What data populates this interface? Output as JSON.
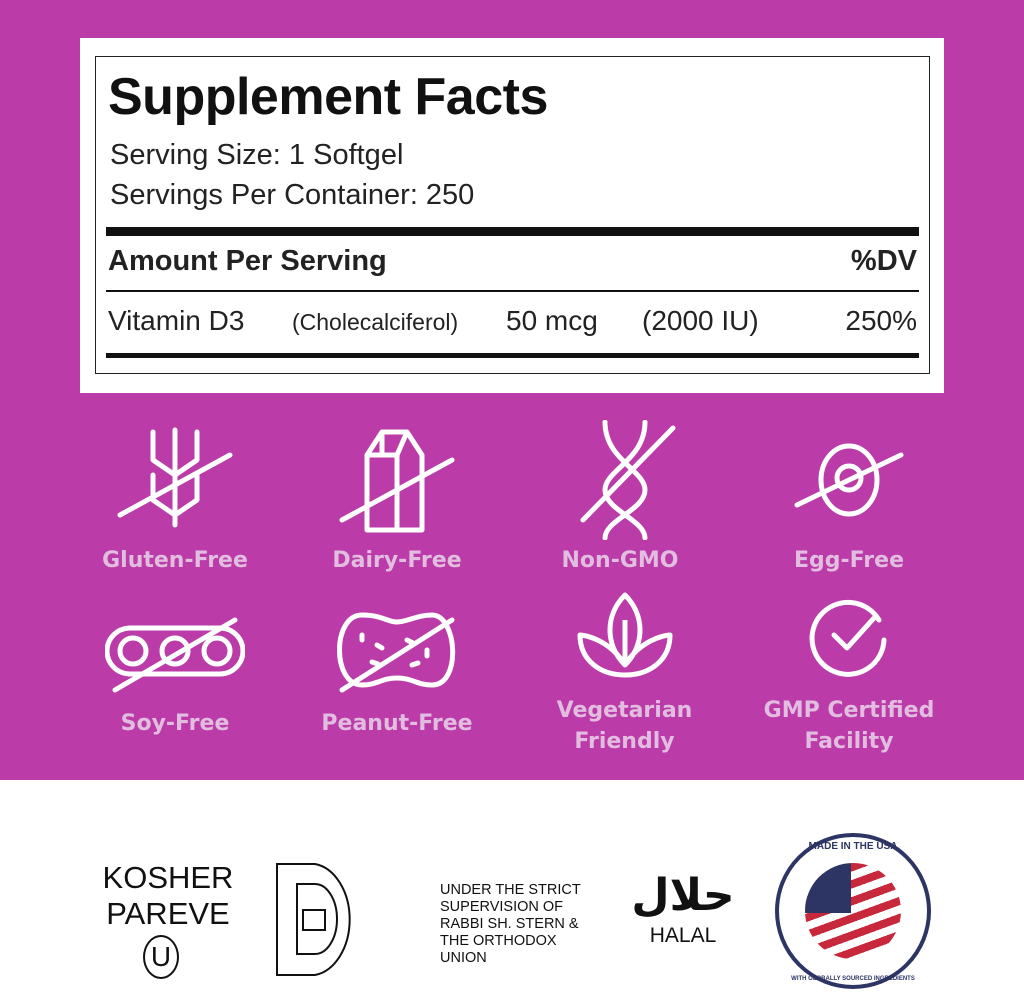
{
  "colors": {
    "background": "#bb3ba8",
    "label_text": "#e2bde0",
    "panel": "#ffffff"
  },
  "facts": {
    "title": "Supplement Facts",
    "serving_size": "Serving Size: 1 Softgel",
    "servings_per_container": "Servings Per Container: 250",
    "header_amount": "Amount Per Serving",
    "header_dv": "%DV",
    "rows": [
      {
        "name": "Vitamin D3",
        "detail": "(Cholecalciferol)",
        "amount": "50 mcg",
        "iu": "(2000 IU)",
        "dv": "250%"
      }
    ]
  },
  "badges": [
    {
      "label": "Gluten-Free",
      "icon": "wheat-crossed-icon"
    },
    {
      "label": "Dairy-Free",
      "icon": "milk-carton-crossed-icon"
    },
    {
      "label": "Non-GMO",
      "icon": "dna-crossed-icon"
    },
    {
      "label": "Egg-Free",
      "icon": "egg-crossed-icon"
    },
    {
      "label": "Soy-Free",
      "icon": "soybean-crossed-icon"
    },
    {
      "label": "Peanut-Free",
      "icon": "peanut-crossed-icon"
    },
    {
      "label": "Vegetarian Friendly",
      "icon": "leaf-icon"
    },
    {
      "label": "GMP Certified Facility",
      "icon": "check-circle-icon"
    }
  ],
  "certs": {
    "kosher_line1": "KOSHER",
    "kosher_line2": "PAREVE",
    "kosher_symbol": "U",
    "supervision": [
      "UNDER THE STRICT",
      "SUPERVISION OF",
      "RABBI SH. STERN &",
      "THE ORTHODOX",
      "UNION"
    ],
    "halal_arabic": "حلال",
    "halal": "HALAL",
    "usa_top": "MADE IN THE USA",
    "usa_bottom": "WITH GLOBALLY SOURCED INGREDIENTS"
  }
}
